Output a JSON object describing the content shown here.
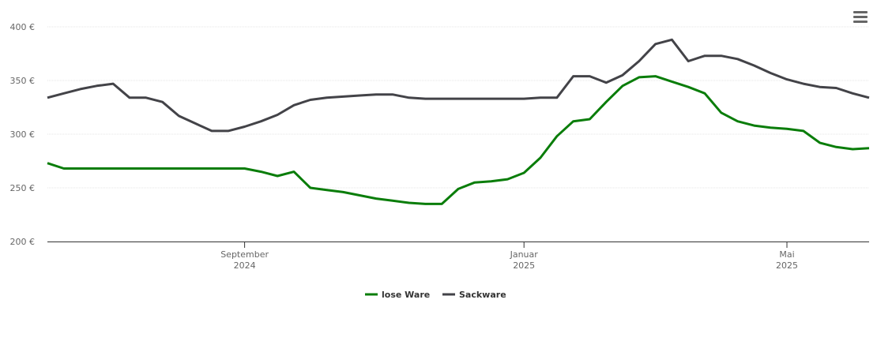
{
  "chart_data": {
    "type": "line",
    "categories": [
      null,
      null,
      null,
      null,
      null,
      null,
      null,
      null,
      null,
      null,
      null,
      null,
      [
        "September",
        "2024"
      ],
      null,
      null,
      null,
      null,
      null,
      null,
      null,
      null,
      null,
      null,
      null,
      null,
      null,
      null,
      null,
      null,
      [
        "Januar",
        "2025"
      ],
      null,
      null,
      null,
      null,
      null,
      null,
      null,
      null,
      null,
      null,
      null,
      null,
      null,
      null,
      null,
      [
        "Mai",
        "2025"
      ],
      null,
      null,
      null,
      null,
      null
    ],
    "series": [
      {
        "name": "lose Ware",
        "color": "#0a7d0a",
        "values": [
          273,
          268,
          268,
          268,
          268,
          268,
          268,
          268,
          268,
          268,
          268,
          268,
          268,
          265,
          261,
          265,
          250,
          248,
          246,
          243,
          240,
          238,
          236,
          235,
          235,
          249,
          255,
          256,
          258,
          264,
          278,
          298,
          312,
          314,
          330,
          345,
          353,
          354,
          349,
          344,
          338,
          320,
          312,
          308,
          306,
          305,
          303,
          292,
          288,
          286,
          287
        ]
      },
      {
        "name": "Sackware",
        "color": "#434348",
        "values": [
          334,
          338,
          342,
          345,
          347,
          334,
          334,
          330,
          317,
          310,
          303,
          303,
          307,
          312,
          318,
          327,
          332,
          334,
          335,
          336,
          337,
          337,
          334,
          333,
          333,
          333,
          333,
          333,
          333,
          333,
          334,
          334,
          354,
          354,
          348,
          355,
          368,
          384,
          388,
          368,
          373,
          373,
          370,
          364,
          357,
          351,
          347,
          344,
          343,
          338,
          334
        ]
      }
    ],
    "ylim": [
      200,
      400
    ],
    "yticks": [
      {
        "value": 200,
        "label": "200 €"
      },
      {
        "value": 250,
        "label": "250 €"
      },
      {
        "value": 300,
        "label": "300 €"
      },
      {
        "value": 350,
        "label": "350 €"
      },
      {
        "value": 400,
        "label": "400 €"
      }
    ],
    "grid": true,
    "legend": "bottom"
  }
}
